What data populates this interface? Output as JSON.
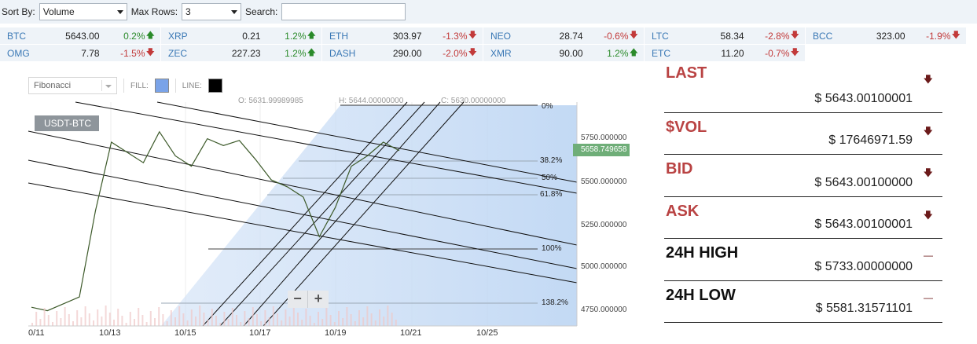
{
  "filters": {
    "sort_label": "Sort By:",
    "sort_value": "Volume",
    "rows_label": "Max Rows:",
    "rows_value": "3",
    "search_label": "Search:",
    "search_value": ""
  },
  "ticker": [
    {
      "symbol": "BTC",
      "price": "5643.00",
      "change": "0.2%",
      "dir": "up"
    },
    {
      "symbol": "XRP",
      "price": "0.21",
      "change": "1.2%",
      "dir": "up"
    },
    {
      "symbol": "ETH",
      "price": "303.97",
      "change": "-1.3%",
      "dir": "down"
    },
    {
      "symbol": "NEO",
      "price": "28.74",
      "change": "-0.6%",
      "dir": "down"
    },
    {
      "symbol": "LTC",
      "price": "58.34",
      "change": "-2.8%",
      "dir": "down"
    },
    {
      "symbol": "BCC",
      "price": "323.00",
      "change": "-1.9%",
      "dir": "down"
    },
    {
      "symbol": "OMG",
      "price": "7.78",
      "change": "-1.5%",
      "dir": "down"
    },
    {
      "symbol": "ZEC",
      "price": "227.23",
      "change": "1.2%",
      "dir": "up"
    },
    {
      "symbol": "DASH",
      "price": "290.00",
      "change": "-2.0%",
      "dir": "down"
    },
    {
      "symbol": "XMR",
      "price": "90.00",
      "change": "1.2%",
      "dir": "up"
    },
    {
      "symbol": "ETC",
      "price": "11.20",
      "change": "-0.7%",
      "dir": "down"
    }
  ],
  "chart_toolbar": {
    "tool_value": "Fibonacci",
    "fill_label": "FILL:",
    "line_label": "LINE:",
    "fill_color": "#7aa3e8",
    "line_color": "#000000"
  },
  "ohlc": {
    "o": "O: 5631.99989985",
    "h": "H: 5644.00000000",
    "c": "C: 5630.00000000"
  },
  "chart": {
    "pair": "USDT-BTC",
    "current_price": "5658.749658",
    "zoom_out": "−",
    "zoom_in": "+"
  },
  "chart_data": {
    "type": "line",
    "x_ticks": [
      "0/11",
      "10/13",
      "10/15",
      "10/17",
      "10/19",
      "10/21",
      "10/25"
    ],
    "y_ticks": [
      "5750.000000",
      "5500.000000",
      "5250.000000",
      "5000.000000",
      "4750.000000"
    ],
    "fib_levels": [
      "0%",
      "38.2%",
      "50%",
      "61.8%",
      "100%",
      "138.2%"
    ],
    "series": [
      {
        "values": [
          4740,
          4720,
          4760,
          4800,
          5300,
          5700,
          5640,
          5580,
          5760,
          5620,
          5560,
          5720,
          5680,
          5710,
          5600,
          5480,
          5440,
          5380,
          5150,
          5320,
          5560,
          5620,
          5700,
          5650
        ]
      }
    ]
  },
  "stats": [
    {
      "label": "LAST",
      "value": "$ 5643.00100001",
      "trend": "down"
    },
    {
      "label": "$VOL",
      "value": "$ 17646971.59",
      "trend": "down"
    },
    {
      "label": "BID",
      "value": "$ 5643.00100000",
      "trend": "down"
    },
    {
      "label": "ASK",
      "value": "$ 5643.00100001",
      "trend": "down"
    },
    {
      "label": "24H HIGH",
      "value": "$ 5733.00000000",
      "trend": "flat"
    },
    {
      "label": "24H LOW",
      "value": "$ 5581.31571101",
      "trend": "flat"
    }
  ]
}
